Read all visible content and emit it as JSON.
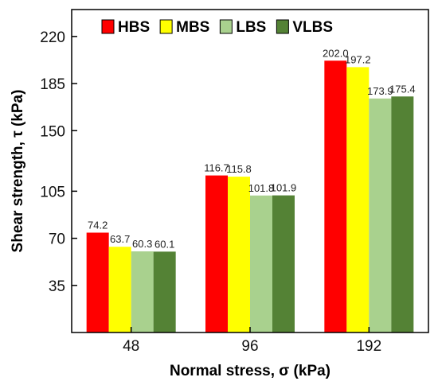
{
  "chart_data": {
    "type": "bar",
    "xlabel": "Normal stress, σ (kPa)",
    "ylabel": "Shear strength, τ (kPa)",
    "categories": [
      "48",
      "96",
      "192"
    ],
    "yticks": [
      "35",
      "70",
      "105",
      "150",
      "185",
      "220"
    ],
    "ylim": [
      0,
      240
    ],
    "legend_position": "top",
    "series": [
      {
        "name": "HBS",
        "color": "#ff0000",
        "values": [
          74.2,
          116.7,
          202.0
        ],
        "labels": [
          "74.2",
          "116.7",
          "202.0"
        ]
      },
      {
        "name": "MBS",
        "color": "#ffff00",
        "values": [
          63.7,
          115.8,
          197.2
        ],
        "labels": [
          "63.7",
          "115.8",
          "197.2"
        ]
      },
      {
        "name": "LBS",
        "color": "#a9d18e",
        "values": [
          60.3,
          101.8,
          173.9
        ],
        "labels": [
          "60.3",
          "101.8",
          "173.9"
        ]
      },
      {
        "name": "VLBS",
        "color": "#548235",
        "values": [
          60.1,
          101.9,
          175.4
        ],
        "labels": [
          "60.1",
          "101.9",
          "175.4"
        ]
      }
    ]
  }
}
